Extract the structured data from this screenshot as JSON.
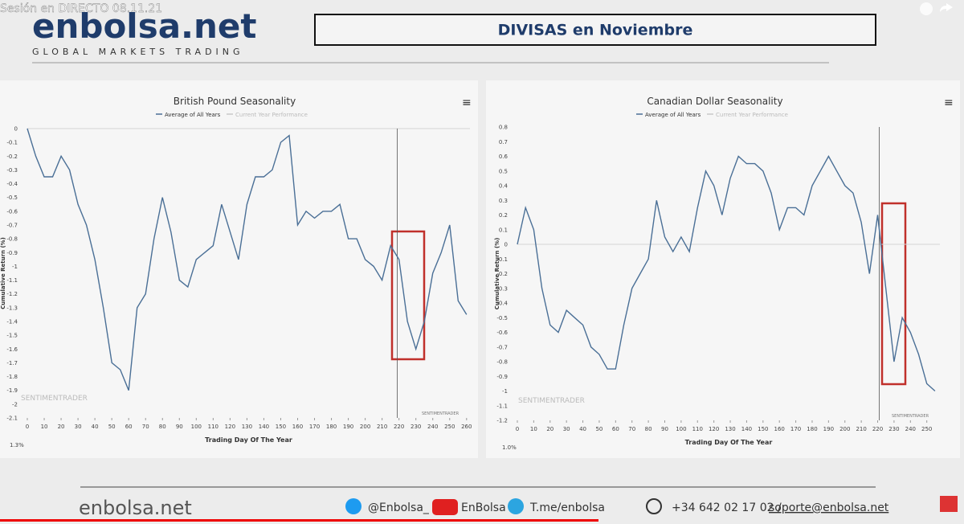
{
  "header": {
    "video_title": "Sesión en DIRECTO 08.11.21",
    "brand": "enbolsa.net",
    "tagline": "GLOBAL MARKETS TRADING",
    "banner": "DIVISAS en Noviembre"
  },
  "chart_data": [
    {
      "type": "line",
      "title": "British Pound Seasonality",
      "xlabel": "Trading Day Of The Year",
      "ylabel": "Cumulative Return (%)",
      "watermark": "SENTIMENTRADER",
      "corner_note": "1.3%",
      "x": [
        0,
        5,
        10,
        15,
        20,
        25,
        30,
        35,
        40,
        45,
        50,
        55,
        60,
        65,
        70,
        75,
        80,
        85,
        90,
        95,
        100,
        105,
        110,
        115,
        120,
        125,
        130,
        135,
        140,
        145,
        150,
        155,
        160,
        165,
        170,
        175,
        180,
        185,
        190,
        195,
        200,
        205,
        210,
        215,
        220,
        225,
        230,
        235,
        240,
        245,
        250,
        255,
        260
      ],
      "series": [
        {
          "name": "Average of All Years",
          "color": "#4a6f96",
          "values": [
            0,
            -0.2,
            -0.35,
            -0.35,
            -0.2,
            -0.3,
            -0.55,
            -0.7,
            -0.95,
            -1.3,
            -1.7,
            -1.75,
            -1.9,
            -1.3,
            -1.2,
            -0.8,
            -0.5,
            -0.75,
            -1.1,
            -1.15,
            -0.95,
            -0.9,
            -0.85,
            -0.55,
            -0.75,
            -0.95,
            -0.55,
            -0.35,
            -0.35,
            -0.3,
            -0.1,
            -0.05,
            -0.7,
            -0.6,
            -0.65,
            -0.6,
            -0.6,
            -0.55,
            -0.8,
            -0.8,
            -0.95,
            -1.0,
            -1.1,
            -0.85,
            -0.95,
            -1.4,
            -1.6,
            -1.4,
            -1.05,
            -0.9,
            -0.7,
            -1.25,
            -1.35
          ]
        }
      ],
      "hidden_series": [
        {
          "name": "Current Year Performance",
          "color": "#c8c8c8"
        }
      ],
      "xlim": [
        0,
        262
      ],
      "xticks": [
        0,
        10,
        20,
        30,
        40,
        50,
        60,
        70,
        80,
        90,
        100,
        110,
        120,
        130,
        140,
        150,
        160,
        170,
        180,
        190,
        200,
        210,
        220,
        230,
        240,
        250,
        260
      ],
      "ylim": [
        -2.1,
        0
      ],
      "yticks": [
        0,
        -0.1,
        -0.2,
        -0.3,
        -0.4,
        -0.5,
        -0.6,
        -0.7,
        -0.8,
        -0.9,
        -1,
        -1.1,
        -1.2,
        -1.3,
        -1.4,
        -1.5,
        -1.6,
        -1.7,
        -1.8,
        -1.9,
        -2,
        -2.1
      ],
      "vline": 219
    },
    {
      "type": "line",
      "title": "Canadian Dollar Seasonality",
      "xlabel": "Trading Day Of The Year",
      "ylabel": "Cumulative Return (%)",
      "watermark": "SENTIMENTRADER",
      "corner_note": "1.0%",
      "x": [
        0,
        5,
        10,
        15,
        20,
        25,
        30,
        35,
        40,
        45,
        50,
        55,
        60,
        65,
        70,
        75,
        80,
        85,
        90,
        95,
        100,
        105,
        110,
        115,
        120,
        125,
        130,
        135,
        140,
        145,
        150,
        155,
        160,
        165,
        170,
        175,
        180,
        185,
        190,
        195,
        200,
        205,
        210,
        215,
        220,
        225,
        230,
        235,
        240,
        245,
        250,
        255
      ],
      "series": [
        {
          "name": "Average of All Years",
          "color": "#4a6f96",
          "values": [
            0,
            0.25,
            0.1,
            -0.3,
            -0.55,
            -0.6,
            -0.45,
            -0.5,
            -0.55,
            -0.7,
            -0.75,
            -0.85,
            -0.85,
            -0.55,
            -0.3,
            -0.2,
            -0.1,
            0.3,
            0.05,
            -0.05,
            0.05,
            -0.05,
            0.25,
            0.5,
            0.4,
            0.2,
            0.45,
            0.6,
            0.55,
            0.55,
            0.5,
            0.35,
            0.1,
            0.25,
            0.25,
            0.2,
            0.4,
            0.5,
            0.6,
            0.5,
            0.4,
            0.35,
            0.15,
            -0.2,
            0.2,
            -0.3,
            -0.8,
            -0.5,
            -0.6,
            -0.75,
            -0.95,
            -1.0
          ]
        }
      ],
      "hidden_series": [
        {
          "name": "Current Year Performance",
          "color": "#c8c8c8"
        }
      ],
      "xlim": [
        0,
        258
      ],
      "xticks": [
        0,
        10,
        20,
        30,
        40,
        50,
        60,
        70,
        80,
        90,
        100,
        110,
        120,
        130,
        140,
        150,
        160,
        170,
        180,
        190,
        200,
        210,
        220,
        230,
        240,
        250
      ],
      "ylim": [
        -1.2,
        0.8
      ],
      "yticks": [
        0.8,
        0.7,
        0.6,
        0.5,
        0.4,
        0.3,
        0.2,
        0.1,
        0,
        -0.1,
        -0.2,
        -0.3,
        -0.4,
        -0.5,
        -0.6,
        -0.7,
        -0.8,
        -0.9,
        -1,
        -1.1,
        -1.2
      ],
      "vline": 221
    }
  ],
  "footer": {
    "brand": "enbolsa.net",
    "twitter": "@Enbolsa_",
    "youtube": "EnBolsa",
    "telegram": "T.me/enbolsa",
    "phone": "+34 642 02 17 02 / ",
    "email": "soporte@enbolsa.net"
  }
}
